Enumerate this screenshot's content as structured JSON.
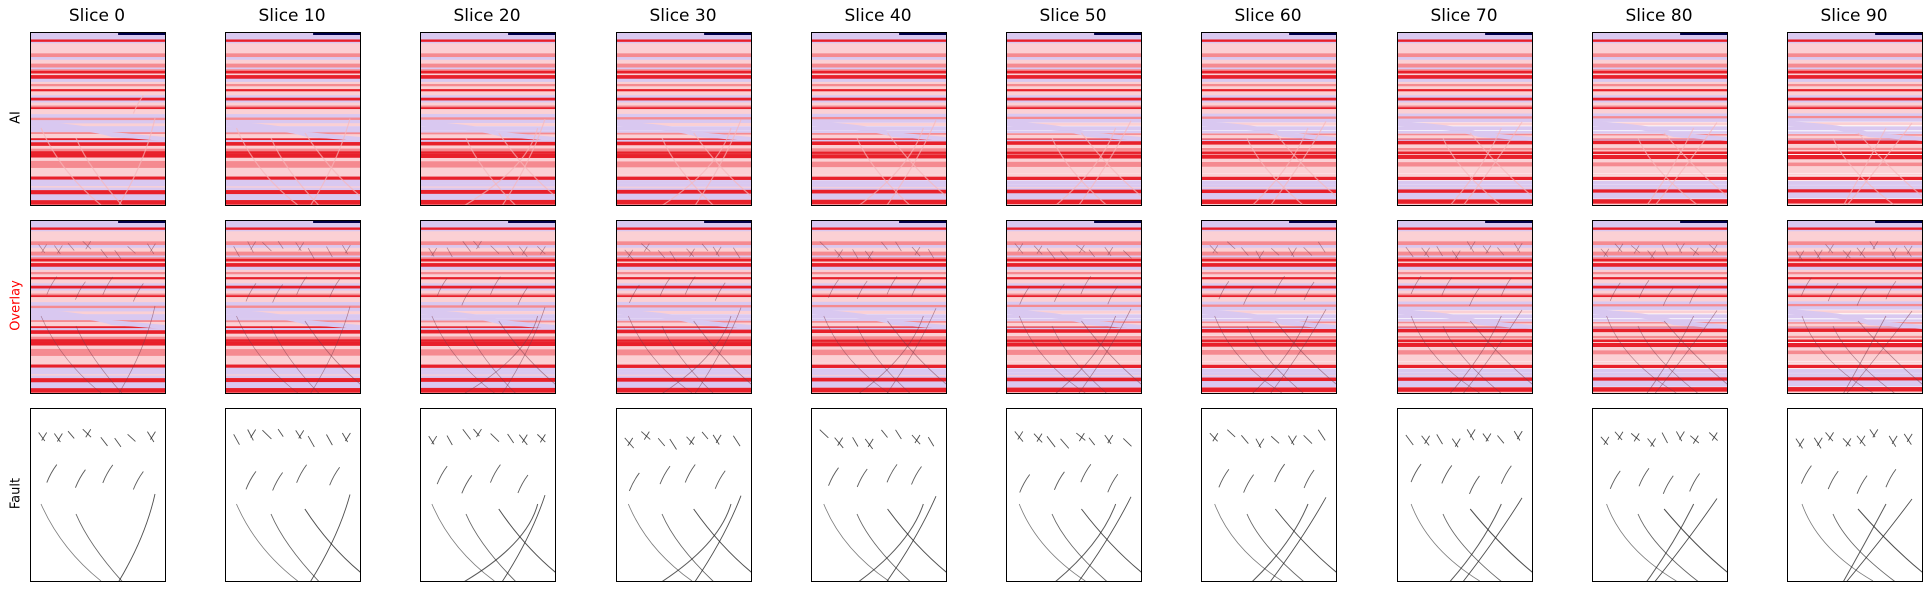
{
  "columns": [
    "Slice 0",
    "Slice 10",
    "Slice 20",
    "Slice 30",
    "Slice 40",
    "Slice 50",
    "Slice 60",
    "Slice 70",
    "Slice 80",
    "Slice 90"
  ],
  "rows": [
    {
      "label": "AI",
      "color": "#000000",
      "kind": "ai"
    },
    {
      "label": "Overlay",
      "color": "#ff0000",
      "kind": "overlay"
    },
    {
      "label": "Fault",
      "color": "#000000",
      "kind": "fault"
    }
  ],
  "palette": {
    "band_dark": "#e8202a",
    "band_mid": "#f58a90",
    "band_light": "#fbd0d4",
    "band_lavender": "#d9c8f0",
    "fault_line": "#222222",
    "top_strip": "#00004a"
  }
}
